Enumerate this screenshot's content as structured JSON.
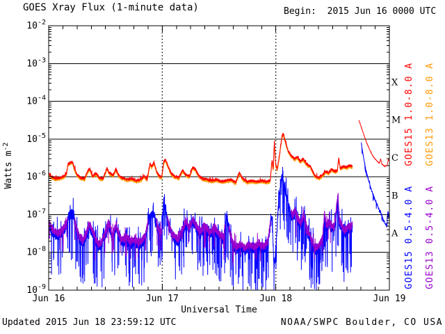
{
  "page": {
    "title": "GOES Xray Flux (1-minute data)",
    "begin_label": "Begin:  2015 Jun 16 0000 UTC",
    "footer_left": "Updated 2015 Jun 18 23:59:12 UTC",
    "footer_right": "NOAA/SWPC Boulder, CO USA"
  },
  "colors": {
    "background": "#ffffff",
    "axis": "#000000",
    "goes15_long": "#ff0000",
    "goes13_long": "#ff9900",
    "goes15_short": "#0000ff",
    "goes13_short": "#9900cc"
  },
  "chart_data": {
    "type": "line",
    "title": "GOES Xray Flux (1-minute data)",
    "begin": "2015 Jun 16 0000 UTC",
    "updated": "2015 Jun 18 23:59:12 UTC",
    "source": "NOAA/SWPC Boulder, CO USA",
    "x_axis": {
      "title": "Universal Time",
      "span_hours": 72,
      "major_ticks": [
        {
          "hour": 0,
          "label": "Jun 16"
        },
        {
          "hour": 24,
          "label": "Jun 17"
        },
        {
          "hour": 48,
          "label": "Jun 18"
        },
        {
          "hour": 72,
          "label": "Jun 19"
        }
      ],
      "minor_tick_step_hours": 3,
      "day_line_hours": [
        24,
        48
      ]
    },
    "y_axis": {
      "title_prefix": "Watts m",
      "title_exponent": "-2",
      "scale": "log",
      "tick_exponents": [
        -2,
        -3,
        -4,
        -5,
        -6,
        -7,
        -8,
        -9
      ],
      "gridline_exponents": [
        -3,
        -4,
        -5,
        -6,
        -7,
        -8
      ],
      "ylim_exponents": [
        -9,
        -2
      ]
    },
    "flare_classes": [
      {
        "label": "X",
        "mid_exponent": -3.5
      },
      {
        "label": "M",
        "mid_exponent": -4.5
      },
      {
        "label": "C",
        "mid_exponent": -5.5
      },
      {
        "label": "B",
        "mid_exponent": -6.5
      },
      {
        "label": "A",
        "mid_exponent": -7.5
      }
    ],
    "legend": [
      {
        "label": "GOES15 1.0-8.0 A",
        "color": "#ff0000",
        "column": 0,
        "group": "long"
      },
      {
        "label": "GOES13 1.0-8.0 A",
        "color": "#ff9900",
        "column": 1,
        "group": "long"
      },
      {
        "label": "GOES15 0.5-4.0 A",
        "color": "#0000ff",
        "column": 0,
        "group": "short"
      },
      {
        "label": "GOES13 0.5-4.0 A",
        "color": "#9900cc",
        "column": 1,
        "group": "short"
      }
    ],
    "series": [
      {
        "id": "goes13_long",
        "name": "GOES13 1.0-8.0 A",
        "color": "#ff9900",
        "keypoints_ref": "goes15_long",
        "offset_log": -0.035,
        "noise_log": 0.04,
        "spike_down_prob": 0,
        "spike_down_max": 0,
        "spike_up_prob": 0,
        "spike_up_max": 0,
        "seed": 19,
        "gaps": [
          [
            64.2,
            72.1
          ]
        ],
        "quiet_ranges": [
          [
            64.2,
            72.1
          ]
        ]
      },
      {
        "id": "goes15_short",
        "name": "GOES15 0.5-4.0 A",
        "color": "#0000ff",
        "noise_log": 0.14,
        "spike_down_prob": 0.08,
        "spike_down_max": 1.2,
        "spike_up_prob": 0.05,
        "spike_up_max": 0.4,
        "seed": 42,
        "gaps": [
          [
            64.2,
            66.05
          ]
        ],
        "quiet_ranges": [
          [
            66.05,
            72.1
          ]
        ],
        "keypoints": [
          [
            0,
            5.5e-08
          ],
          [
            0.5,
            4e-08
          ],
          [
            1.2,
            3e-08
          ],
          [
            2.0,
            2.8e-08
          ],
          [
            3.0,
            3.5e-08
          ],
          [
            3.8,
            5e-08
          ],
          [
            4.2,
            8.5e-08
          ],
          [
            4.7,
            1.05e-07
          ],
          [
            5.3,
            9.5e-08
          ],
          [
            5.8,
            4e-08
          ],
          [
            6.5,
            2.2e-08
          ],
          [
            7.3,
            1.8e-08
          ],
          [
            8.0,
            2.8e-08
          ],
          [
            8.6,
            5e-08
          ],
          [
            9.2,
            3.2e-08
          ],
          [
            9.8,
            2.2e-08
          ],
          [
            10.5,
            1.4e-08
          ],
          [
            11.2,
            1.6e-08
          ],
          [
            12.0,
            3e-08
          ],
          [
            12.7,
            5.5e-08
          ],
          [
            13.4,
            2.4e-08
          ],
          [
            14.3,
            4.5e-08
          ],
          [
            15.0,
            2.2e-08
          ],
          [
            15.8,
            1.8e-08
          ],
          [
            16.5,
            2.2e-08
          ],
          [
            17.3,
            1.6e-08
          ],
          [
            18.2,
            2e-08
          ],
          [
            19.0,
            1.5e-08
          ],
          [
            19.8,
            1.8e-08
          ],
          [
            20.5,
            2.6e-08
          ],
          [
            21.2,
            7e-08
          ],
          [
            21.9,
            1.05e-07
          ],
          [
            22.4,
            8.5e-08
          ],
          [
            23.0,
            4e-08
          ],
          [
            23.5,
            3e-08
          ],
          [
            23.9,
            3.2e-08
          ],
          [
            24.15,
            1.3e-07
          ],
          [
            24.35,
            2.4e-07
          ],
          [
            24.6,
            1.7e-07
          ],
          [
            25.2,
            6e-08
          ],
          [
            25.9,
            3e-08
          ],
          [
            26.6,
            2.2e-08
          ],
          [
            27.4,
            1.9e-08
          ],
          [
            28.2,
            3.5e-08
          ],
          [
            29.0,
            5.5e-08
          ],
          [
            29.7,
            4e-08
          ],
          [
            30.5,
            6.5e-08
          ],
          [
            31.2,
            4.5e-08
          ],
          [
            32.0,
            3e-08
          ],
          [
            33.0,
            4.5e-08
          ],
          [
            34.0,
            3e-08
          ],
          [
            35.0,
            4e-08
          ],
          [
            36.0,
            2.6e-08
          ],
          [
            37.0,
            2.2e-08
          ],
          [
            37.6,
            1.1e-07
          ],
          [
            38.1,
            4e-08
          ],
          [
            38.8,
            1.6e-08
          ],
          [
            39.6,
            1.2e-08
          ],
          [
            40.5,
            1.4e-08
          ],
          [
            41.5,
            1.1e-08
          ],
          [
            42.5,
            1.4e-08
          ],
          [
            43.5,
            1.2e-08
          ],
          [
            44.5,
            1.5e-08
          ],
          [
            45.5,
            1.2e-08
          ],
          [
            46.3,
            1.6e-08
          ],
          [
            47.1,
            9e-08
          ],
          [
            47.35,
            3.5e-08
          ],
          [
            47.6,
            4e-09
          ],
          [
            47.9,
            8e-09
          ],
          [
            48.3,
            5e-08
          ],
          [
            48.7,
            3e-07
          ],
          [
            49.2,
            8.5e-07
          ],
          [
            49.45,
            9.5e-07
          ],
          [
            49.8,
            6e-07
          ],
          [
            50.3,
            3e-07
          ],
          [
            50.9,
            1.4e-07
          ],
          [
            51.5,
            8e-08
          ],
          [
            52.1,
            1.1e-07
          ],
          [
            52.6,
            7e-08
          ],
          [
            53.3,
            5e-08
          ],
          [
            53.9,
            8.5e-08
          ],
          [
            54.6,
            3.5e-08
          ],
          [
            55.4,
            2e-08
          ],
          [
            56.3,
            1.1e-08
          ],
          [
            57.2,
            1.3e-08
          ],
          [
            57.9,
            2.2e-08
          ],
          [
            58.3,
            1e-07
          ],
          [
            58.6,
            4.5e-08
          ],
          [
            59.2,
            5.5e-08
          ],
          [
            59.8,
            4.5e-08
          ],
          [
            60.3,
            3.5e-08
          ],
          [
            61.15,
            3e-07
          ],
          [
            61.4,
            6e-08
          ],
          [
            61.9,
            4.5e-08
          ],
          [
            62.5,
            3.2e-08
          ],
          [
            63.1,
            3.8e-08
          ],
          [
            63.7,
            4.2e-08
          ],
          [
            64.2,
            4.5e-08
          ],
          [
            66.05,
            8e-06
          ],
          [
            66.5,
            3.5e-06
          ],
          [
            67.0,
            1.6e-06
          ],
          [
            67.6,
            8e-07
          ],
          [
            68.2,
            4.5e-07
          ],
          [
            68.9,
            2.6e-07
          ],
          [
            69.6,
            1.6e-07
          ],
          [
            70.2,
            1.1e-07
          ],
          [
            70.8,
            7e-08
          ],
          [
            71.2,
            5.5e-08
          ],
          [
            71.45,
            5e-08
          ],
          [
            71.7,
            1.3e-07
          ],
          [
            71.85,
            8e-08
          ],
          [
            72,
            1.2e-07
          ]
        ]
      },
      {
        "id": "goes13_short",
        "name": "GOES13 0.5-4.0 A",
        "color": "#9900cc",
        "keypoints_ref": "goes15_short",
        "offset_log": 0.07,
        "noise_log": 0.11,
        "spike_down_prob": 0.03,
        "spike_down_max": 0.6,
        "spike_up_prob": 0.02,
        "spike_up_max": 0.25,
        "seed": 77,
        "gaps": [
          [
            4.0,
            5.5
          ],
          [
            21.0,
            22.7
          ],
          [
            23.95,
            25.1
          ],
          [
            37.3,
            38.1
          ],
          [
            46.9,
            51.2
          ],
          [
            64.2,
            72.1
          ]
        ],
        "quiet_ranges": [
          [
            64.2,
            72.1
          ]
        ]
      },
      {
        "id": "goes15_long",
        "name": "GOES15 1.0-8.0 A",
        "color": "#ff0000",
        "noise_log": 0.035,
        "spike_down_prob": 0,
        "spike_down_max": 0,
        "spike_up_prob": 0.012,
        "spike_up_max": 0.1,
        "seed": 7,
        "gaps": [
          [
            64.2,
            65.55
          ]
        ],
        "quiet_ranges": [
          [
            65.55,
            72.1
          ]
        ],
        "keypoints": [
          [
            0,
            1.2e-06
          ],
          [
            0.7,
            1e-06
          ],
          [
            1.5,
            9e-07
          ],
          [
            2.5,
            9.5e-07
          ],
          [
            3.3,
            1.05e-06
          ],
          [
            3.8,
            1.3e-06
          ],
          [
            4.1,
            2.2e-06
          ],
          [
            4.6,
            2.4e-06
          ],
          [
            5.0,
            2.5e-06
          ],
          [
            5.5,
            1.6e-06
          ],
          [
            6.0,
            1.15e-06
          ],
          [
            6.8,
            9.5e-07
          ],
          [
            7.6,
            9e-07
          ],
          [
            8.3,
            1.5e-06
          ],
          [
            8.7,
            1.6e-06
          ],
          [
            9.3,
            1.05e-06
          ],
          [
            10.0,
            1.25e-06
          ],
          [
            10.7,
            9.5e-07
          ],
          [
            11.5,
            9e-07
          ],
          [
            12.3,
            1.7e-06
          ],
          [
            12.8,
            1.3e-06
          ],
          [
            13.6,
            1.1e-06
          ],
          [
            14.2,
            1.6e-06
          ],
          [
            14.8,
            1.1e-06
          ],
          [
            15.5,
            9.5e-07
          ],
          [
            16.5,
            8.5e-07
          ],
          [
            17.5,
            9e-07
          ],
          [
            18.5,
            8e-07
          ],
          [
            19.5,
            8.5e-07
          ],
          [
            20.2,
            1.05e-06
          ],
          [
            20.8,
            8.5e-07
          ],
          [
            21.4,
            2.2e-06
          ],
          [
            21.8,
            1.9e-06
          ],
          [
            22.3,
            2.4e-06
          ],
          [
            22.8,
            1.4e-06
          ],
          [
            23.4,
            1.05e-06
          ],
          [
            23.9,
            1e-06
          ],
          [
            24.3,
            2.4e-06
          ],
          [
            24.6,
            2.9e-06
          ],
          [
            25.0,
            2.3e-06
          ],
          [
            25.8,
            1.3e-06
          ],
          [
            26.5,
            1.05e-06
          ],
          [
            27.5,
            9.5e-07
          ],
          [
            28.3,
            1.5e-06
          ],
          [
            29.0,
            1.15e-06
          ],
          [
            29.8,
            1.05e-06
          ],
          [
            30.4,
            1.8e-06
          ],
          [
            31.0,
            1.6e-06
          ],
          [
            31.8,
            1.05e-06
          ],
          [
            32.5,
            9e-07
          ],
          [
            33.5,
            8.5e-07
          ],
          [
            34.5,
            8e-07
          ],
          [
            35.5,
            8.5e-07
          ],
          [
            36.5,
            7.5e-07
          ],
          [
            37.5,
            8e-07
          ],
          [
            38.5,
            8.5e-07
          ],
          [
            39.5,
            7e-07
          ],
          [
            40.3,
            1.3e-06
          ],
          [
            41.0,
            9e-07
          ],
          [
            42.0,
            7.5e-07
          ],
          [
            43.0,
            8e-07
          ],
          [
            44.0,
            7.5e-07
          ],
          [
            45.0,
            8e-07
          ],
          [
            46.0,
            7.5e-07
          ],
          [
            46.8,
            8e-07
          ],
          [
            47.2,
            2.8e-06
          ],
          [
            47.45,
            1.6e-06
          ],
          [
            47.7,
            9e-06
          ],
          [
            47.95,
            2.2e-06
          ],
          [
            48.3,
            1.6e-06
          ],
          [
            48.8,
            4e-06
          ],
          [
            49.3,
            1.2e-05
          ],
          [
            49.6,
            1.35e-05
          ],
          [
            50.0,
            9e-06
          ],
          [
            50.6,
            5e-06
          ],
          [
            51.3,
            3.6e-06
          ],
          [
            52.0,
            3e-06
          ],
          [
            52.5,
            3.4e-06
          ],
          [
            53.2,
            2.6e-06
          ],
          [
            53.8,
            3e-06
          ],
          [
            54.5,
            2.2e-06
          ],
          [
            55.3,
            1.9e-06
          ],
          [
            56.2,
            1.1e-06
          ],
          [
            57.0,
            9.5e-07
          ],
          [
            57.8,
            1.1e-06
          ],
          [
            58.5,
            1.4e-06
          ],
          [
            59.2,
            1.3e-06
          ],
          [
            59.8,
            1.6e-06
          ],
          [
            60.4,
            1.4e-06
          ],
          [
            61.0,
            1.5e-06
          ],
          [
            61.3,
            3.2e-06
          ],
          [
            61.6,
            1.7e-06
          ],
          [
            62.2,
            1.9e-06
          ],
          [
            63.0,
            1.8e-06
          ],
          [
            63.6,
            2e-06
          ],
          [
            64.2,
            1.9e-06
          ],
          [
            65.55,
            3.2e-05
          ],
          [
            66.0,
            2.2e-05
          ],
          [
            66.6,
            1.3e-05
          ],
          [
            67.2,
            8e-06
          ],
          [
            67.9,
            5e-06
          ],
          [
            68.6,
            3.4e-06
          ],
          [
            69.4,
            2.6e-06
          ],
          [
            69.9,
            2.3e-06
          ],
          [
            70.15,
            3e-06
          ],
          [
            70.4,
            2.2e-06
          ],
          [
            71.0,
            1.9e-06
          ],
          [
            71.5,
            2e-06
          ],
          [
            71.8,
            2.9e-06
          ],
          [
            72,
            2.6e-06
          ]
        ]
      }
    ]
  }
}
